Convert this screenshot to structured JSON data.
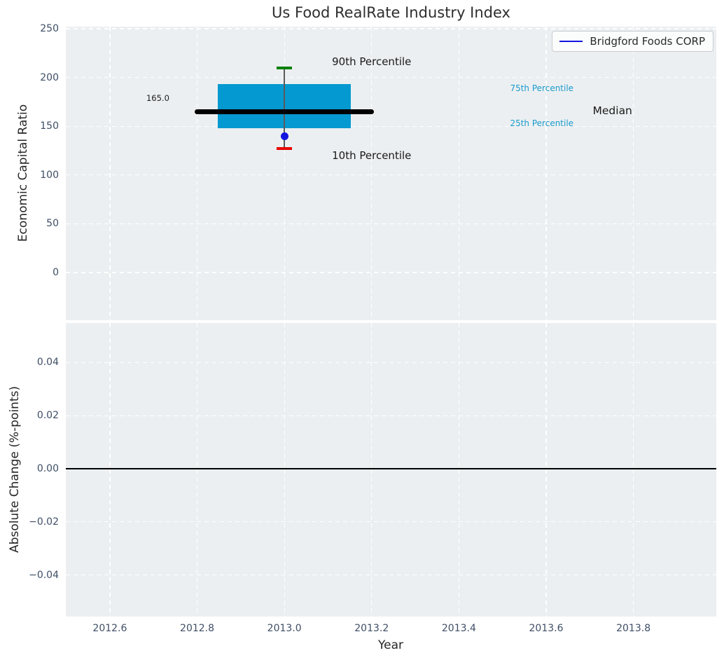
{
  "title": "Us Food RealRate Industry Index",
  "colors": {
    "figure_bg": "#ffffff",
    "plot_bg": "#eceff1",
    "grid": "#ffffff",
    "tick_label": "#3f4e66",
    "text": "#262626",
    "box_fill": "#0499d1",
    "median_line": "#000000",
    "whisker": "#5a5a5a",
    "p90_cap": "#008000",
    "p10_cap": "#e80000",
    "company_marker": "#1414e0",
    "legend_line": "#1414e0",
    "percentile_label": "#1b9ccd",
    "zero_line": "#000000"
  },
  "legend": {
    "items": [
      {
        "label": "Bridgford Foods CORP"
      }
    ]
  },
  "chart_data": [
    {
      "type": "box",
      "title": "Us Food RealRate Industry Index",
      "ylabel": "Economic Capital Ratio",
      "xlim": [
        2012.499,
        2013.99
      ],
      "ylim": [
        -48.9,
        252.2
      ],
      "grid": true,
      "legend_position": "upper right",
      "xticks": [
        {
          "v": 2012.6,
          "label": "2012.6"
        },
        {
          "v": 2012.8,
          "label": "2012.8"
        },
        {
          "v": 2013.0,
          "label": "2013.0"
        },
        {
          "v": 2013.2,
          "label": "2013.2"
        },
        {
          "v": 2013.4,
          "label": "2013.4"
        },
        {
          "v": 2013.6,
          "label": "2013.6"
        },
        {
          "v": 2013.8,
          "label": "2013.8"
        }
      ],
      "yticks": [
        {
          "v": 0,
          "label": "0"
        },
        {
          "v": 50,
          "label": "50"
        },
        {
          "v": 100,
          "label": "100"
        },
        {
          "v": 150,
          "label": "150"
        },
        {
          "v": 200,
          "label": "200"
        },
        {
          "v": 250,
          "label": "250"
        }
      ],
      "boxes": [
        {
          "x": 2013.0,
          "p10": 127,
          "p25": 148,
          "median": 165.0,
          "p75": 193,
          "p90": 210,
          "company_name": "Bridgford Foods CORP",
          "company_value": 140,
          "box_halfwidth": 0.152,
          "median_halfwidth": 0.205,
          "cap_halfwidth": 0.018
        }
      ],
      "annotations": [
        {
          "text": "165.0",
          "x": 2012.71,
          "y": 179,
          "size": 11.5,
          "color": "#1a1a1a"
        },
        {
          "text": "90th Percentile",
          "x": 2013.2,
          "y": 216,
          "size": 15,
          "color": "#1a1a1a"
        },
        {
          "text": "10th Percentile",
          "x": 2013.2,
          "y": 120,
          "size": 15,
          "color": "#1a1a1a"
        },
        {
          "text": "75th Percentile",
          "x": 2013.59,
          "y": 189,
          "size": 12,
          "color": "#1b9ccd"
        },
        {
          "text": "25th Percentile",
          "x": 2013.59,
          "y": 153,
          "size": 12,
          "color": "#1b9ccd"
        },
        {
          "text": "Median",
          "x": 2013.752,
          "y": 166,
          "size": 15.5,
          "color": "#1a1a1a"
        }
      ]
    },
    {
      "type": "line",
      "ylabel": "Absolute Change (%-points)",
      "xlabel": "Year",
      "xlim": [
        2012.499,
        2013.99
      ],
      "ylim": [
        -0.0557,
        0.0549
      ],
      "grid": true,
      "zero_line": 0.0,
      "series": [],
      "xticks": [
        {
          "v": 2012.6,
          "label": "2012.6"
        },
        {
          "v": 2012.8,
          "label": "2012.8"
        },
        {
          "v": 2013.0,
          "label": "2013.0"
        },
        {
          "v": 2013.2,
          "label": "2013.2"
        },
        {
          "v": 2013.4,
          "label": "2013.4"
        },
        {
          "v": 2013.6,
          "label": "2013.6"
        },
        {
          "v": 2013.8,
          "label": "2013.8"
        }
      ],
      "yticks": [
        {
          "v": 0.04,
          "label": "0.04"
        },
        {
          "v": 0.02,
          "label": "0.02"
        },
        {
          "v": 0.0,
          "label": "0.00"
        },
        {
          "v": -0.02,
          "label": "−0.02"
        },
        {
          "v": -0.04,
          "label": "−0.04"
        }
      ]
    }
  ]
}
